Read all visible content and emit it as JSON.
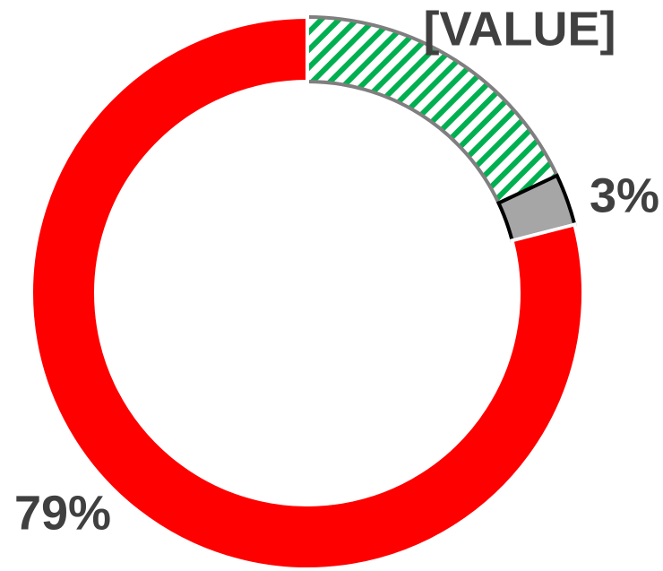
{
  "chart_data": {
    "type": "donut",
    "values": [
      18,
      3,
      79
    ],
    "value_labels": [
      "[VALUE]",
      "3%",
      "79%"
    ],
    "colors": [
      "#00b050",
      "#a6a6a6",
      "#ff0000"
    ],
    "edge_colors": [
      "#7f7f7f",
      "#000000",
      "#ffffff"
    ],
    "hatch": [
      true,
      false,
      false
    ]
  }
}
